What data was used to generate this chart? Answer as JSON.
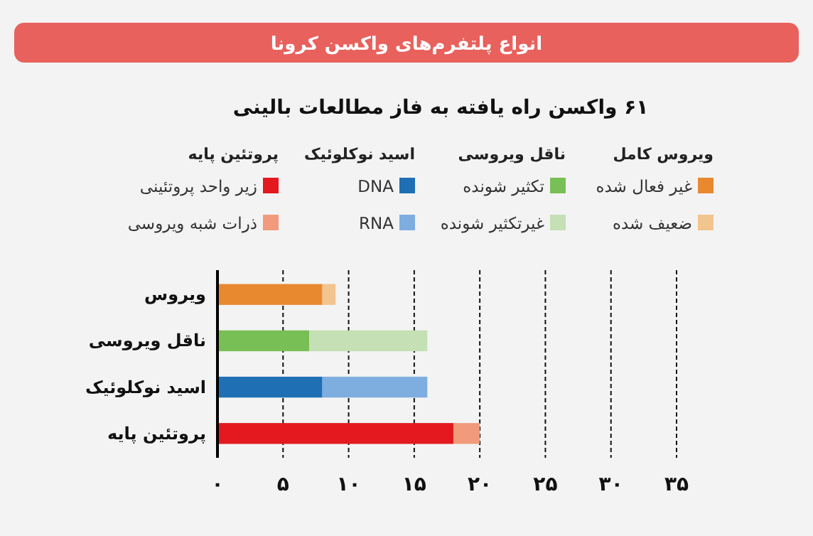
{
  "chart_data": {
    "type": "bar",
    "orientation": "horizontal",
    "stacked": true,
    "title": "انواع پلتفرم‌های واکسن کرونا",
    "subtitle": "۶۱ واکسن راه یافته به فاز مطالعات بالینی",
    "categories": [
      "ویروس",
      "ناقل ویروسی",
      "اسید نوکلوئیک",
      "پروتئین پایه"
    ],
    "series": [
      {
        "name": "غیر فعال شده",
        "color": "#e8892f",
        "values": [
          8,
          null,
          null,
          null
        ]
      },
      {
        "name": "ضعیف شده",
        "color": "#f2c48e",
        "values": [
          1,
          null,
          null,
          null
        ]
      },
      {
        "name": "تکثیر شونده",
        "color": "#78bf56",
        "values": [
          null,
          7,
          null,
          null
        ]
      },
      {
        "name": "غیرتکثیر شونده",
        "color": "#c5e0b4",
        "values": [
          null,
          9,
          null,
          null
        ]
      },
      {
        "name": "DNA",
        "color": "#1f6fb5",
        "values": [
          null,
          null,
          8,
          null
        ]
      },
      {
        "name": "RNA",
        "color": "#7eaedf",
        "values": [
          null,
          null,
          8,
          null
        ]
      },
      {
        "name": "زیر واحد پروتئینی",
        "color": "#e3191f",
        "values": [
          null,
          null,
          null,
          18
        ]
      },
      {
        "name": "ذرات شبه ویروسی",
        "color": "#f19a7c",
        "values": [
          null,
          null,
          null,
          2
        ]
      }
    ],
    "annotations": [
      "ویروس کامل",
      "ناقل ویروسی",
      "اسید نوکلوئیک",
      "پروتئین پایه"
    ],
    "xlim": [
      0,
      35
    ],
    "xticks": [
      {
        "value": 0,
        "label": "۰"
      },
      {
        "value": 5,
        "label": "۵"
      },
      {
        "value": 10,
        "label": "۱۰"
      },
      {
        "value": 15,
        "label": "۱۵"
      },
      {
        "value": 20,
        "label": "۲۰"
      },
      {
        "value": 25,
        "label": "۲۵"
      },
      {
        "value": 30,
        "label": "۳۰"
      },
      {
        "value": 35,
        "label": "۳۵"
      }
    ],
    "grid": "x",
    "legend": "top"
  }
}
